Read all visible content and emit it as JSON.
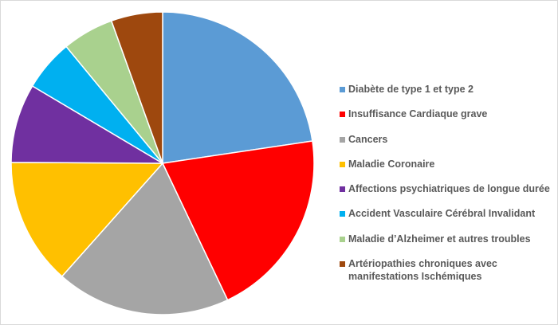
{
  "chart_data": {
    "type": "pie",
    "title": "",
    "legend_position": "right",
    "start_angle_deg": 0,
    "direction": "clockwise",
    "slices": [
      {
        "label": "Diabète de type 1 et type 2",
        "value": 23.1,
        "color": "#5b9bd5"
      },
      {
        "label": "Insuffisance Cardiaque grave",
        "value": 20.7,
        "color": "#ff0000"
      },
      {
        "label": "Cancers",
        "value": 19.0,
        "color": "#a5a5a5"
      },
      {
        "label": "Maladie Coronaire",
        "value": 13.8,
        "color": "#ffc000"
      },
      {
        "label": "Affections psychiatriques de longue durée",
        "value": 8.6,
        "color": "#7030a0"
      },
      {
        "label": "Accident Vasculaire Cérébral Invalidant",
        "value": 5.6,
        "color": "#00b0f0"
      },
      {
        "label": "Maladie d’Alzheimer et autres troubles",
        "value": 5.6,
        "color": "#a9d18e"
      },
      {
        "label": "Artériopathies chroniques avec\nmanifestations Ischémiques",
        "value": 5.6,
        "color": "#9e480e"
      }
    ]
  }
}
